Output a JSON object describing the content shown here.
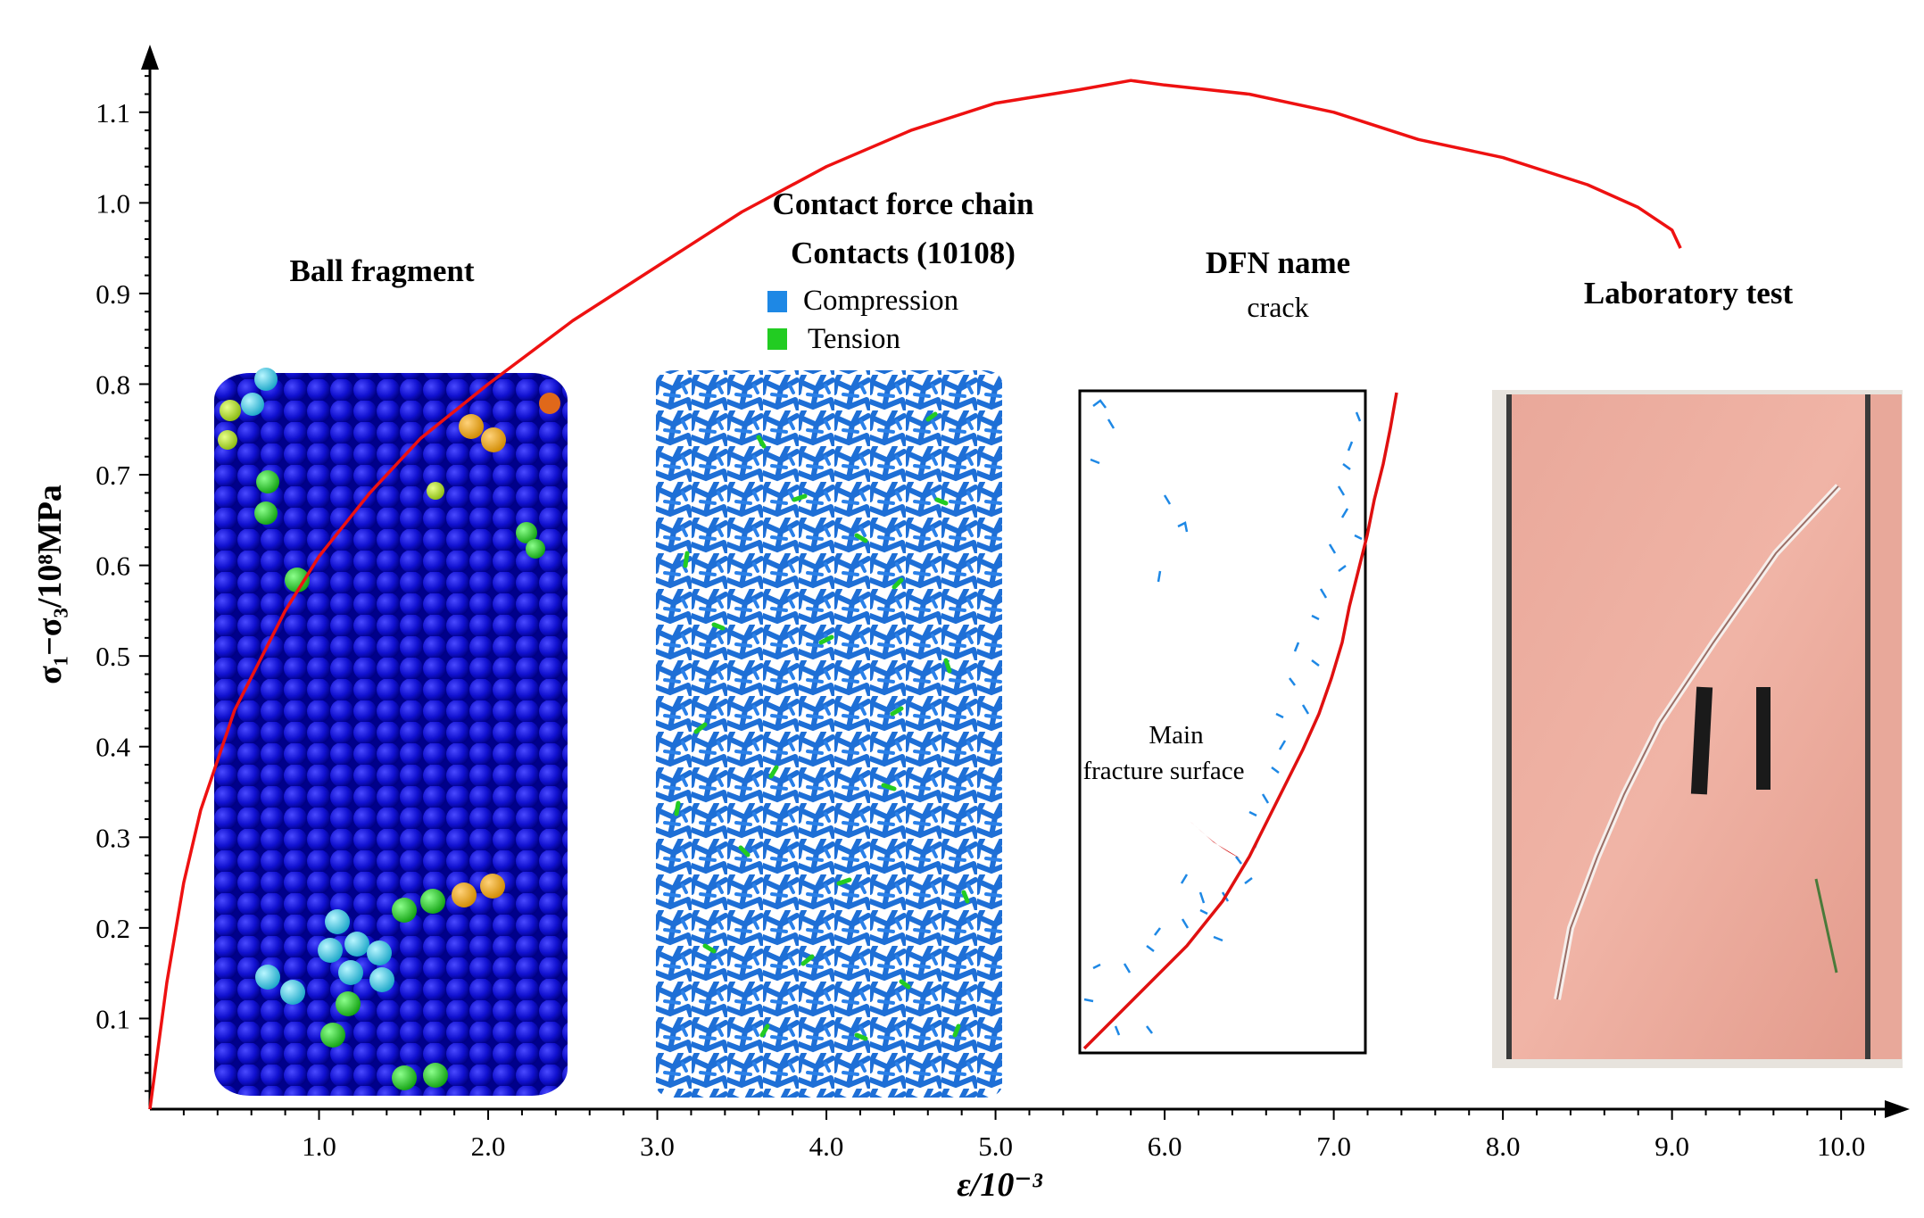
{
  "chart_data": {
    "type": "line",
    "xlabel": "ε/10⁻³",
    "ylabel": "σ₁−σ₃/10⁸MPa",
    "xlim": [
      0,
      10.3
    ],
    "ylim": [
      0,
      1.15
    ],
    "x_ticks": [
      "1.0",
      "2.0",
      "3.0",
      "4.0",
      "5.0",
      "6.0",
      "7.0",
      "8.0",
      "9.0",
      "10.0"
    ],
    "y_ticks": [
      "0.1",
      "0.2",
      "0.3",
      "0.4",
      "0.5",
      "0.6",
      "0.7",
      "0.8",
      "0.9",
      "1.0",
      "1.1"
    ],
    "series": [
      {
        "color": "#ee1111",
        "x": [
          0.0,
          0.1,
          0.2,
          0.3,
          0.5,
          0.8,
          1.0,
          1.3,
          1.6,
          2.0,
          2.5,
          3.0,
          3.5,
          4.0,
          4.5,
          5.0,
          5.5,
          5.8,
          6.0,
          6.5,
          7.0,
          7.5,
          8.0,
          8.5,
          8.8,
          9.0,
          9.05
        ],
        "y": [
          0.0,
          0.14,
          0.25,
          0.33,
          0.44,
          0.55,
          0.61,
          0.68,
          0.74,
          0.8,
          0.87,
          0.93,
          0.99,
          1.04,
          1.08,
          1.11,
          1.125,
          1.135,
          1.13,
          1.12,
          1.1,
          1.07,
          1.05,
          1.02,
          0.995,
          0.97,
          0.95
        ]
      }
    ],
    "panels": {
      "ball": {
        "title": "Ball fragment"
      },
      "contact": {
        "title1": "Contact force chain",
        "title2": "Contacts (10108)",
        "legend": [
          {
            "label": "Compression",
            "color": "#1e88e5"
          },
          {
            "label": "Tension",
            "color": "#22cc22"
          }
        ]
      },
      "dfn": {
        "title": "DFN name",
        "subtitle": "crack",
        "annotation1": "Main",
        "annotation2": "fracture surface"
      },
      "lab": {
        "title": "Laboratory test"
      }
    }
  }
}
